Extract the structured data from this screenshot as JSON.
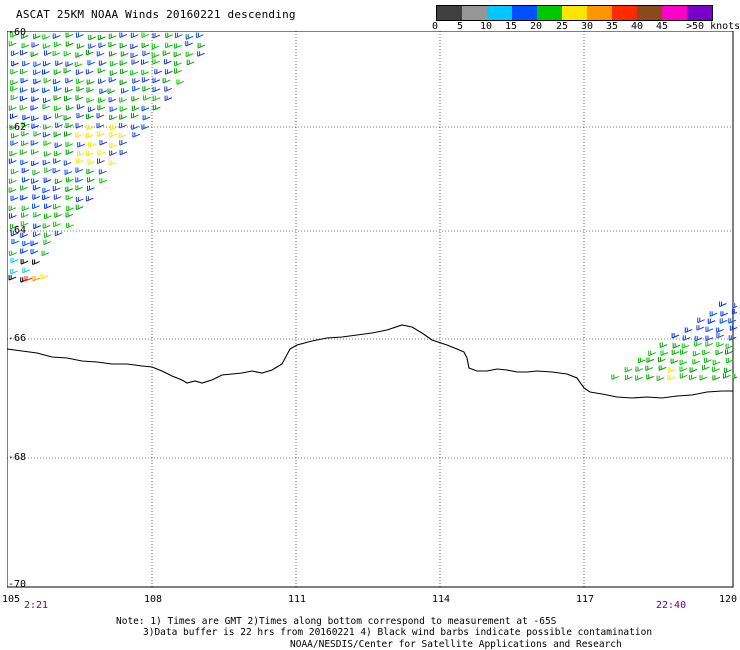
{
  "title": "ASCAT 25KM NOAA Winds 20160221 descending",
  "colorbar": {
    "labels": [
      "0",
      "5",
      "10",
      "15",
      "20",
      "25",
      "30",
      "35",
      "40",
      "45",
      ">50 knots"
    ],
    "colors": [
      "#404040",
      "#969696",
      "#00c8ff",
      "#0050ff",
      "#00c800",
      "#ffe600",
      "#ff9600",
      "#ff2a00",
      "#8b4a1e",
      "#ff00c8",
      "#7800c8"
    ]
  },
  "axes": {
    "lat_labels": [
      "-60",
      "-62",
      "-64",
      "-66",
      "-68",
      "-70"
    ],
    "lon_labels": [
      "105",
      "108",
      "111",
      "114",
      "117",
      "120"
    ],
    "time_left": "2:21",
    "time_right": "22:40"
  },
  "notes": {
    "line1": "Note: 1) Times are GMT 2)Times along bottom correspond to measurement at -65S",
    "line2": "3)Data buffer is 22 hrs from 20160221 4) Black wind barbs indicate possible contamination",
    "credit": "NOAA/NESDIS/Center for Satellite Applications and Research"
  }
}
